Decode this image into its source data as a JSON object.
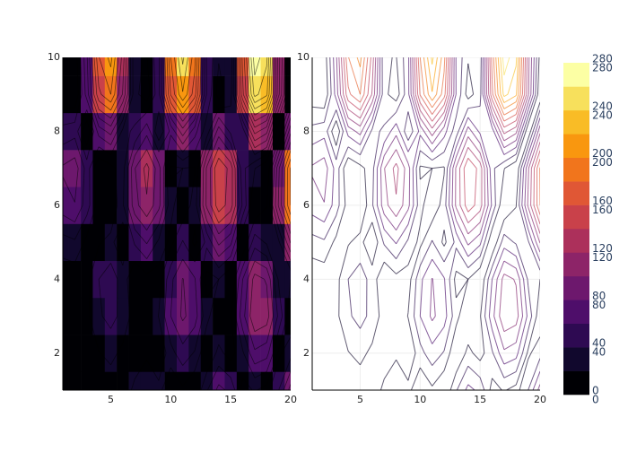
{
  "chart_data": {
    "type": "contour",
    "colormap": "inferno",
    "x": [
      1,
      2,
      3,
      4,
      5,
      6,
      7,
      8,
      9,
      10,
      11,
      12,
      13,
      14,
      15,
      16,
      17,
      18,
      19,
      20
    ],
    "y": [
      1,
      2,
      3,
      4,
      5,
      6,
      7,
      8,
      9,
      10
    ],
    "z": [
      [
        6,
        10,
        7,
        3,
        7,
        5,
        26,
        38,
        27,
        0,
        16,
        0,
        38,
        66,
        55,
        12,
        22,
        12,
        40,
        89
      ],
      [
        3,
        5,
        4,
        19,
        26,
        15,
        6,
        16,
        0,
        33,
        52,
        38,
        0,
        26,
        11,
        37,
        76,
        68,
        16,
        32
      ],
      [
        2,
        1,
        15,
        37,
        47,
        34,
        10,
        0,
        21,
        60,
        84,
        69,
        27,
        0,
        18,
        73,
        117,
        110,
        55,
        5
      ],
      [
        4,
        6,
        13,
        40,
        50,
        32,
        0,
        13,
        10,
        55,
        81,
        62,
        13,
        20,
        0,
        60,
        108,
        98,
        37,
        20
      ],
      [
        32,
        37,
        14,
        18,
        27,
        0,
        43,
        62,
        36,
        14,
        42,
        15,
        45,
        85,
        65,
        0,
        51,
        37,
        36,
        102
      ],
      [
        70,
        79,
        50,
        10,
        0,
        37,
        92,
        117,
        86,
        27,
        3,
        30,
        104,
        152,
        130,
        56,
        0,
        19,
        103,
        180
      ],
      [
        83,
        91,
        52,
        0,
        13,
        32,
        99,
        127,
        89,
        17,
        20,
        18,
        103,
        159,
        132,
        45,
        21,
        0,
        96,
        182
      ],
      [
        47,
        53,
        0,
        69,
        87,
        35,
        43,
        74,
        24,
        65,
        111,
        68,
        28,
        90,
        55,
        49,
        127,
        106,
        0,
        95
      ],
      [
        6,
        0,
        69,
        155,
        180,
        118,
        26,
        8,
        54,
        162,
        218,
        169,
        59,
        10,
        33,
        155,
        247,
        224,
        105,
        0
      ],
      [
        0,
        7,
        76,
        179,
        207,
        132,
        22,
        19,
        54,
        180,
        245,
        187,
        58,
        22,
        27,
        167,
        272,
        245,
        108,
        12
      ]
    ],
    "levels": [
      0,
      20,
      40,
      60,
      80,
      100,
      120,
      140,
      160,
      180,
      200,
      220,
      240,
      260,
      280
    ],
    "xlim": [
      1,
      20
    ],
    "ylim": [
      1,
      10
    ],
    "xticks": [
      5,
      10,
      15,
      20
    ],
    "yticks": [
      2,
      4,
      6,
      8,
      10
    ],
    "zticks": [
      0,
      40,
      80,
      120,
      160,
      200,
      240,
      280
    ],
    "panels": [
      {
        "fill": true,
        "grid": false
      },
      {
        "fill": false,
        "grid": true
      }
    ]
  }
}
